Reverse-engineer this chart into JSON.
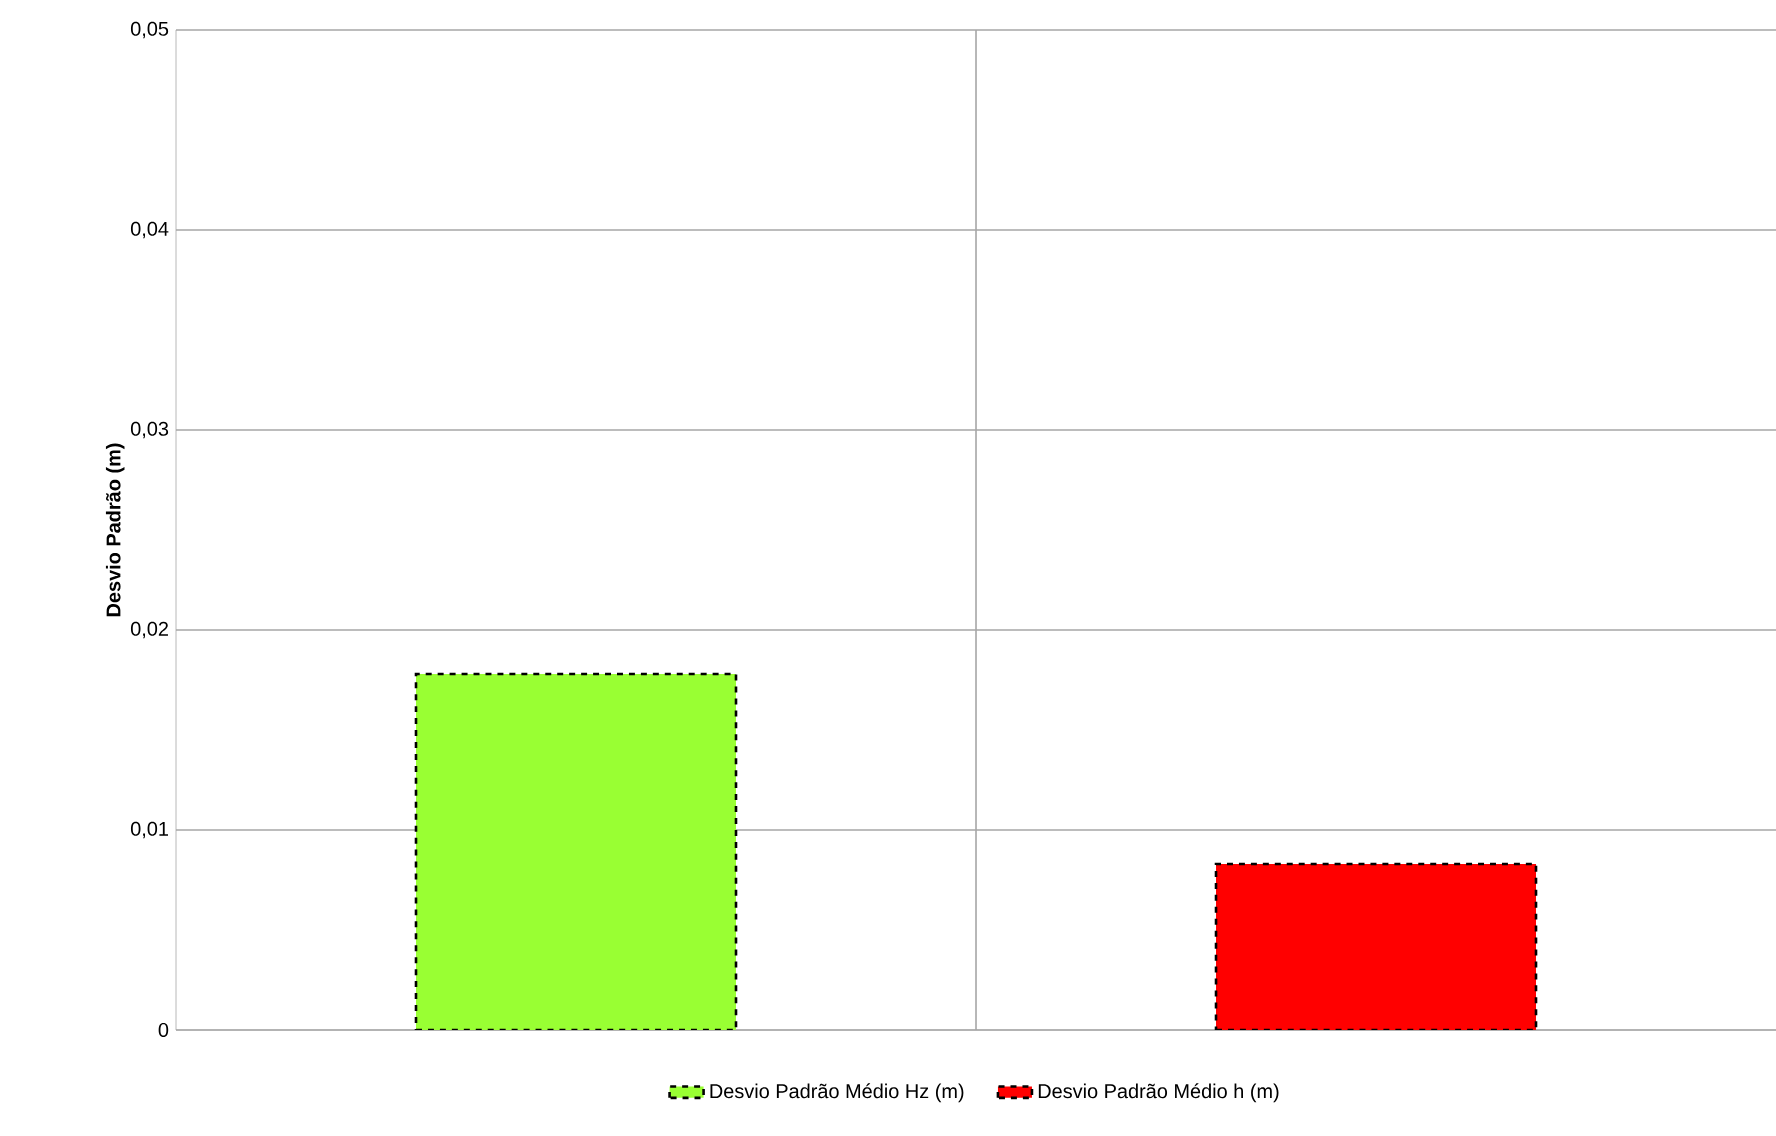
{
  "chart_data": {
    "type": "bar",
    "ylabel": "Desvio Padrão (m)",
    "categories": [
      null,
      null
    ],
    "series": [
      {
        "name": "Desvio Padrão Médio Hz (m)",
        "color": "#99ff33",
        "values": [
          0.0178,
          null
        ]
      },
      {
        "name": "Desvio Padrão Médio h (m)",
        "color": "#ff0000",
        "values": [
          null,
          0.0083
        ]
      }
    ],
    "ylim": [
      0,
      0.05
    ],
    "yticks": [
      0,
      {
        "value": 0.01,
        "label": "0,01"
      },
      {
        "value": 0.02,
        "label": "0,02"
      },
      {
        "value": 0.03,
        "label": "0,03"
      },
      {
        "value": 0.04,
        "label": "0,04"
      },
      {
        "value": 0.05,
        "label": "0,05"
      }
    ],
    "grid": true,
    "legend": "bottom",
    "tick_labels": "y"
  }
}
